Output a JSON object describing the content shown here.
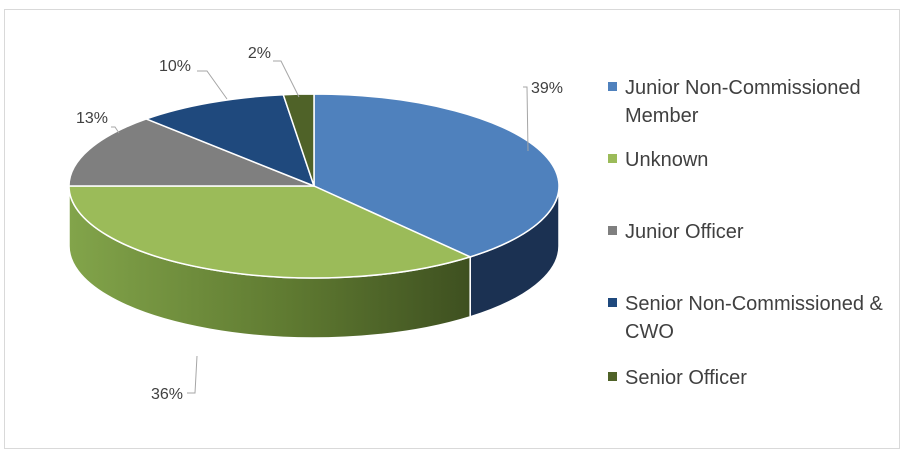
{
  "chart_data": {
    "type": "pie",
    "style": "3d",
    "categories": [
      "Junior Non-Commissioned Member",
      "Unknown",
      "Junior Officer",
      "Senior Non-Commissioned & CWO",
      "Senior Officer"
    ],
    "values": [
      39,
      36,
      13,
      10,
      2
    ],
    "data_labels": [
      "39%",
      "36%",
      "13%",
      "10%",
      "2%"
    ],
    "legend_lines": [
      [
        "Junior Non-Commissioned",
        "Member"
      ],
      [
        "Unknown"
      ],
      [
        "Junior Officer"
      ],
      [
        "Senior Non-Commissioned &",
        "CWO"
      ],
      [
        "Senior Officer"
      ]
    ],
    "colors": [
      "#4f81bd",
      "#9bbb59",
      "#7f7f7f",
      "#1f497d",
      "#4f6228"
    ],
    "side_colors": [
      "#1b3152",
      "#5a7030",
      "#505050",
      "#14253d",
      "#38481a"
    ],
    "legend_position": "right"
  }
}
